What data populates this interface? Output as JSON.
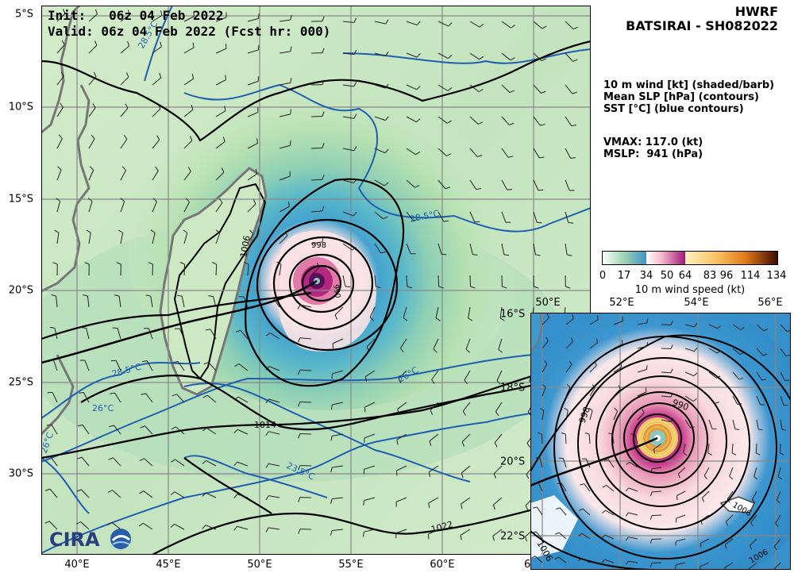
{
  "header": {
    "init_line": "Init:   06z 04 Feb 2022",
    "valid_line": "Valid: 06z 04 Feb 2022 (Fcst hr: 000)"
  },
  "title": {
    "model": "HWRF",
    "storm": "BATSIRAI - SH082022"
  },
  "legend_text": {
    "line1": "10 m wind [kt] (shaded/barb)",
    "line2": "Mean SLP [hPa] (contours)",
    "line3": "SST [°C] (blue contours)"
  },
  "stats": {
    "vmax": "VMAX: 117.0 (kt)",
    "mslp": "MSLP:  941 (hPa)"
  },
  "colorbar": {
    "ticks": [
      "0",
      "17",
      "34",
      "50",
      "64",
      "83",
      "96",
      "114",
      "134"
    ],
    "label": "10 m wind speed (kt)"
  },
  "main_map": {
    "lat_labels": [
      "5°S",
      "10°S",
      "15°S",
      "20°S",
      "25°S",
      "30°S"
    ],
    "lon_labels": [
      "40°E",
      "45°E",
      "50°E",
      "55°E",
      "60°E"
    ],
    "edge_lon_label": "6"
  },
  "inset_map": {
    "lon_labels": [
      "50°E",
      "52°E",
      "54°E",
      "56°E"
    ],
    "lat_labels": [
      "16°S",
      "18°S",
      "20°S",
      "22°S"
    ]
  },
  "contour_labels": {
    "sst_285a": "28.5°C",
    "sst_285b": "28.5°C",
    "sst_285c": "28.5°C",
    "sst_26a": "26°C",
    "sst_26b": "26°C",
    "sst_26c": "26°C",
    "sst_235": "23.5°C",
    "slp_1006": "1006",
    "slp_1014": "1014",
    "slp_1022": "1022",
    "slp_998": "998",
    "slp_990": "990",
    "inset_998": "998",
    "inset_990": "990",
    "inset_1006": "1006",
    "inset_1006b": "1006",
    "inset_1006c": "1006"
  },
  "logo": {
    "text": "CIRA"
  },
  "colors": {
    "sst_contour": "#1f5fb0",
    "slp_contour": "#000000",
    "land_outline": "#777777"
  }
}
